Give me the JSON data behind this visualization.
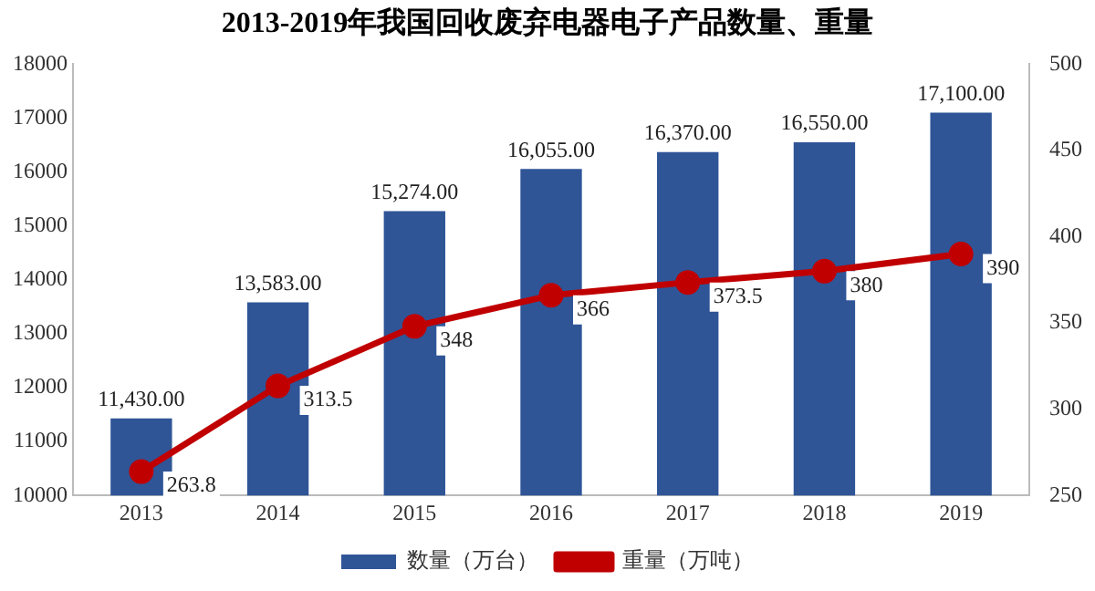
{
  "chart_data": {
    "type": "bar",
    "title": "2013-2019年我国回收废弃电器电子产品数量、重量",
    "categories": [
      "2013",
      "2014",
      "2015",
      "2016",
      "2017",
      "2018",
      "2019"
    ],
    "series": [
      {
        "name": "数量（万台）",
        "color": "#2f5597",
        "values": [
          11430,
          13583,
          15274,
          16055,
          16370,
          16550,
          17100
        ],
        "value_labels": [
          "11,430.00",
          "13,583.00",
          "15,274.00",
          "16,055.00",
          "16,370.00",
          "16,550.00",
          "17,100.00"
        ]
      },
      {
        "name": "重量（万吨）",
        "type": "line",
        "axis": "y2",
        "color": "#c00000",
        "values": [
          263.8,
          313.5,
          348,
          366,
          373.5,
          380,
          390
        ],
        "value_labels": [
          "263.8",
          "313.5",
          "348",
          "366",
          "373.5",
          "380",
          "390"
        ]
      }
    ],
    "ylim": [
      10000,
      18000
    ],
    "yticks": [
      10000,
      11000,
      12000,
      13000,
      14000,
      15000,
      16000,
      17000,
      18000
    ],
    "y2lim": [
      250,
      500
    ],
    "y2ticks": [
      250,
      300,
      350,
      400,
      450,
      500
    ],
    "grid": false,
    "legend": "bottom",
    "marker": "circle",
    "line_style": "solid"
  }
}
